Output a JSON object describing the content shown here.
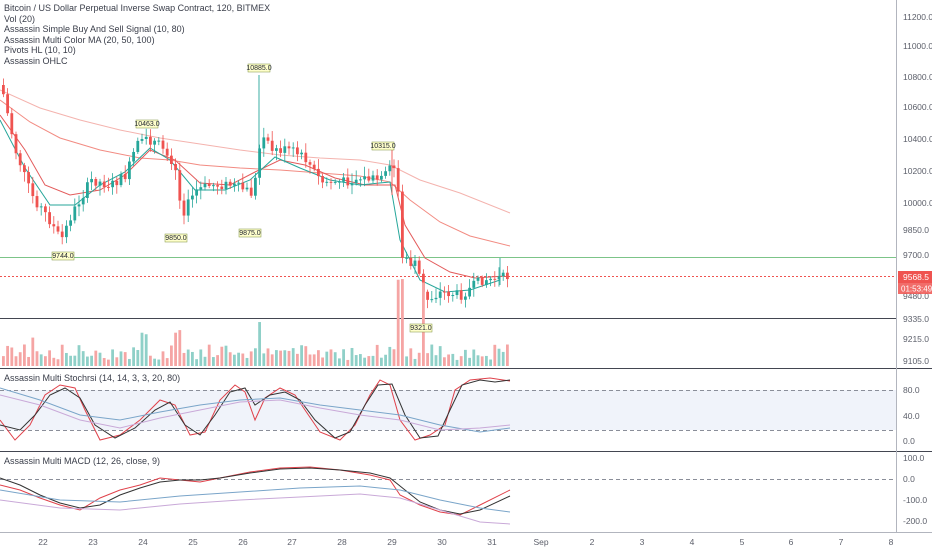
{
  "legend": {
    "title": "Bitcoin / US Dollar Perpetual Inverse Swap Contract, 120, BITMEX",
    "indicators": [
      "Vol (20)",
      "Assassin Simple Buy And Sell Signal (10, 80)",
      "Assassin Multi Color MA (20, 50, 100)",
      "Pivots HL (10, 10)",
      "Assassin OHLC"
    ]
  },
  "stoch_title": "Assassin Multi Stochrsi (14, 14, 3, 3, 20, 80)",
  "macd_title": "Assassin Multi MACD (12, 26, close, 9)",
  "colors": {
    "up": "#26a69a",
    "down": "#ef5350",
    "ma20": "#e35b5b",
    "ma50": "#f28b82",
    "ma100": "#f4b3ae",
    "price_badge": "#ef5350",
    "timer_badge": "#ef5350",
    "support_line": "#7cc488",
    "k_line": "#e0414a",
    "d_line": "#333333"
  },
  "price_axis": {
    "ticks": [
      "11200.0",
      "11000.0",
      "10800.0",
      "10600.0",
      "10400.0",
      "10200.0",
      "10000.0",
      "9850.0",
      "9700.0",
      "9480.0",
      "9335.0",
      "9215.0",
      "9105.0"
    ],
    "current_price": "9568.5",
    "countdown": "01:53:49"
  },
  "stoch_axis": {
    "ticks": [
      "80.0",
      "40.0",
      "0.0"
    ]
  },
  "macd_axis": {
    "ticks": [
      "100.0",
      "0.0",
      "-100.0",
      "-200.0"
    ]
  },
  "time_axis": {
    "labels": [
      "22",
      "23",
      "24",
      "25",
      "26",
      "27",
      "28",
      "29",
      "30",
      "31",
      "Sep",
      "2",
      "3",
      "4",
      "5",
      "6",
      "7",
      "8"
    ]
  },
  "pivots": [
    "10885.0",
    "10463.0",
    "10315.0",
    "9850.0",
    "9875.0",
    "9744.0",
    "9321.0"
  ]
}
